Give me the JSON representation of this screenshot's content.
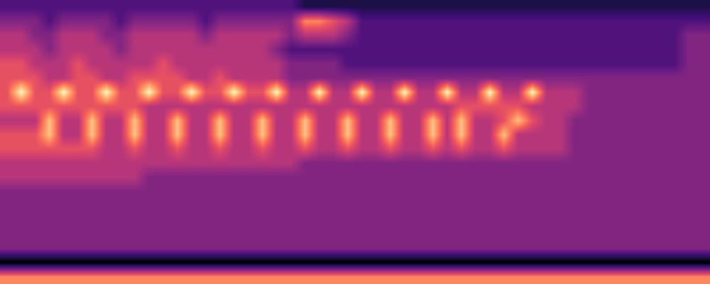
{
  "chart_data": {
    "type": "heatmap",
    "tick_labels": false,
    "cells": [
      [
        3,
        3,
        3,
        3,
        3,
        3,
        3,
        3,
        3,
        3,
        3,
        3,
        3,
        3,
        3,
        3,
        3,
        3,
        3,
        3,
        3,
        2,
        2,
        2,
        2,
        2,
        2,
        2,
        2,
        2,
        2,
        2,
        2,
        2,
        2,
        2,
        2,
        2,
        2,
        2,
        2,
        2,
        2,
        2,
        2,
        2,
        2,
        2,
        2,
        2
      ],
      [
        4,
        4,
        4,
        3,
        4,
        4,
        4,
        4,
        3,
        4,
        4,
        4,
        4,
        4,
        3,
        4,
        4,
        4,
        4,
        4,
        4,
        7,
        7,
        6,
        5,
        3,
        3,
        3,
        3,
        3,
        3,
        3,
        3,
        3,
        3,
        3,
        3,
        3,
        3,
        3,
        3,
        3,
        3,
        3,
        3,
        3,
        3,
        3,
        3,
        3
      ],
      [
        5,
        5,
        4,
        4,
        5,
        5,
        5,
        4,
        4,
        5,
        5,
        5,
        5,
        5,
        4,
        5,
        5,
        5,
        5,
        5,
        4,
        5,
        5,
        5,
        4,
        3,
        3,
        3,
        3,
        3,
        3,
        3,
        3,
        3,
        3,
        3,
        3,
        3,
        3,
        3,
        3,
        3,
        3,
        3,
        3,
        3,
        3,
        3,
        4,
        4
      ],
      [
        5,
        5,
        5,
        4,
        5,
        5,
        5,
        5,
        4,
        5,
        5,
        5,
        5,
        5,
        5,
        5,
        5,
        5,
        5,
        4,
        3,
        3,
        3,
        3,
        3,
        3,
        3,
        3,
        3,
        3,
        3,
        3,
        3,
        3,
        3,
        3,
        3,
        3,
        3,
        3,
        3,
        3,
        3,
        3,
        3,
        3,
        3,
        3,
        4,
        4
      ],
      [
        6,
        6,
        5,
        5,
        5,
        6,
        5,
        5,
        5,
        5,
        5,
        6,
        5,
        5,
        5,
        5,
        5,
        5,
        5,
        5,
        4,
        4,
        4,
        4,
        3,
        3,
        3,
        3,
        3,
        3,
        3,
        3,
        3,
        3,
        3,
        3,
        3,
        3,
        3,
        3,
        3,
        3,
        3,
        3,
        3,
        3,
        3,
        3,
        4,
        4
      ],
      [
        6,
        6,
        6,
        5,
        5,
        6,
        6,
        5,
        5,
        6,
        6,
        6,
        6,
        5,
        5,
        6,
        5,
        5,
        5,
        5,
        4,
        4,
        4,
        4,
        4,
        4,
        4,
        4,
        4,
        4,
        4,
        4,
        4,
        4,
        4,
        4,
        4,
        4,
        4,
        4,
        4,
        4,
        4,
        4,
        4,
        4,
        4,
        4,
        4,
        4
      ],
      [
        6,
        9,
        6,
        6,
        9,
        6,
        6,
        9,
        6,
        6,
        9,
        6,
        6,
        9,
        6,
        6,
        9,
        6,
        6,
        9,
        5,
        5,
        9,
        5,
        5,
        9,
        5,
        5,
        9,
        5,
        5,
        9,
        5,
        5,
        9,
        5,
        5,
        9,
        5,
        5,
        5,
        4,
        4,
        4,
        4,
        4,
        4,
        4,
        4,
        4
      ],
      [
        6,
        6,
        6,
        6,
        6,
        6,
        6,
        6,
        6,
        6,
        5,
        5,
        5,
        5,
        5,
        5,
        5,
        5,
        5,
        5,
        5,
        5,
        5,
        5,
        5,
        5,
        5,
        5,
        5,
        5,
        5,
        5,
        6,
        6,
        6,
        6,
        6,
        5,
        5,
        5,
        5,
        4,
        4,
        4,
        4,
        4,
        4,
        4,
        4,
        4
      ],
      [
        5,
        5,
        5,
        8,
        5,
        5,
        8,
        5,
        5,
        8,
        5,
        5,
        8,
        5,
        5,
        8,
        5,
        5,
        8,
        5,
        5,
        8,
        5,
        5,
        8,
        5,
        5,
        8,
        5,
        5,
        8,
        5,
        8,
        5,
        5,
        6,
        8,
        6,
        5,
        5,
        4,
        4,
        4,
        4,
        4,
        4,
        4,
        4,
        4,
        4
      ],
      [
        6,
        6,
        6,
        8,
        5,
        5,
        8,
        5,
        5,
        8,
        5,
        5,
        8,
        5,
        5,
        8,
        5,
        5,
        8,
        5,
        5,
        8,
        5,
        5,
        8,
        5,
        5,
        8,
        5,
        5,
        8,
        5,
        8,
        5,
        5,
        8,
        5,
        5,
        5,
        5,
        4,
        4,
        4,
        4,
        4,
        4,
        4,
        4,
        4,
        4
      ],
      [
        6,
        6,
        6,
        6,
        6,
        6,
        6,
        5,
        5,
        6,
        5,
        5,
        6,
        5,
        5,
        6,
        5,
        5,
        6,
        5,
        5,
        6,
        5,
        5,
        6,
        5,
        5,
        6,
        5,
        5,
        6,
        5,
        6,
        5,
        5,
        6,
        5,
        5,
        5,
        5,
        4,
        4,
        4,
        4,
        4,
        4,
        4,
        4,
        4,
        4
      ],
      [
        5,
        5,
        5,
        5,
        5,
        5,
        5,
        5,
        5,
        5,
        5,
        5,
        5,
        5,
        5,
        5,
        5,
        5,
        5,
        5,
        5,
        4,
        4,
        4,
        4,
        4,
        4,
        4,
        4,
        4,
        4,
        4,
        4,
        4,
        4,
        4,
        4,
        4,
        4,
        4,
        4,
        4,
        4,
        4,
        4,
        4,
        4,
        4,
        4,
        4
      ],
      [
        5,
        5,
        5,
        5,
        5,
        5,
        5,
        5,
        5,
        5,
        4,
        4,
        4,
        4,
        4,
        4,
        4,
        4,
        4,
        4,
        4,
        4,
        4,
        4,
        4,
        4,
        4,
        4,
        4,
        4,
        4,
        4,
        4,
        4,
        4,
        4,
        4,
        4,
        4,
        4,
        4,
        4,
        4,
        4,
        4,
        4,
        4,
        4,
        4,
        4
      ],
      [
        4,
        4,
        4,
        4,
        4,
        4,
        4,
        4,
        4,
        4,
        4,
        4,
        4,
        4,
        4,
        4,
        4,
        4,
        4,
        4,
        4,
        4,
        4,
        4,
        4,
        4,
        4,
        4,
        4,
        4,
        4,
        4,
        4,
        4,
        4,
        4,
        4,
        4,
        4,
        4,
        4,
        4,
        4,
        4,
        4,
        4,
        4,
        4,
        4,
        4
      ],
      [
        4,
        4,
        4,
        4,
        4,
        4,
        4,
        4,
        4,
        4,
        4,
        4,
        4,
        4,
        4,
        4,
        4,
        4,
        4,
        4,
        4,
        4,
        4,
        4,
        4,
        4,
        4,
        4,
        4,
        4,
        4,
        4,
        4,
        4,
        4,
        4,
        4,
        4,
        4,
        4,
        4,
        4,
        4,
        4,
        4,
        4,
        4,
        4,
        4,
        4
      ],
      [
        4,
        4,
        4,
        4,
        4,
        4,
        4,
        4,
        4,
        4,
        4,
        4,
        4,
        4,
        4,
        4,
        4,
        4,
        4,
        4,
        4,
        4,
        4,
        4,
        4,
        4,
        4,
        4,
        4,
        4,
        4,
        4,
        4,
        4,
        4,
        4,
        4,
        4,
        4,
        4,
        4,
        4,
        4,
        4,
        4,
        4,
        4,
        4,
        4,
        4
      ],
      [
        4,
        4,
        4,
        4,
        4,
        4,
        4,
        4,
        4,
        4,
        4,
        4,
        4,
        4,
        4,
        4,
        4,
        4,
        4,
        4,
        4,
        4,
        4,
        4,
        4,
        4,
        4,
        4,
        4,
        4,
        4,
        4,
        4,
        4,
        4,
        4,
        4,
        4,
        4,
        4,
        4,
        4,
        4,
        4,
        4,
        4,
        4,
        4,
        4,
        4
      ],
      [
        4,
        4,
        4,
        4,
        4,
        4,
        4,
        4,
        4,
        4,
        4,
        4,
        4,
        4,
        4,
        4,
        4,
        4,
        4,
        4,
        4,
        4,
        4,
        4,
        4,
        4,
        4,
        4,
        4,
        4,
        4,
        4,
        4,
        4,
        4,
        4,
        4,
        4,
        4,
        4,
        4,
        4,
        4,
        4,
        4,
        4,
        4,
        4,
        4,
        4
      ],
      [
        1,
        1,
        1,
        1,
        1,
        1,
        1,
        1,
        1,
        1,
        1,
        1,
        1,
        1,
        1,
        1,
        1,
        1,
        1,
        1,
        1,
        1,
        1,
        1,
        1,
        1,
        1,
        1,
        1,
        1,
        1,
        1,
        1,
        1,
        1,
        1,
        1,
        1,
        1,
        1,
        1,
        1,
        1,
        1,
        1,
        1,
        1,
        1,
        1,
        1
      ],
      [
        7,
        7,
        7,
        7,
        7,
        7,
        7,
        7,
        7,
        7,
        7,
        7,
        7,
        7,
        7,
        7,
        7,
        7,
        7,
        7,
        7,
        7,
        7,
        7,
        7,
        7,
        7,
        7,
        7,
        7,
        7,
        7,
        7,
        7,
        7,
        7,
        7,
        7,
        7,
        7,
        7,
        7,
        7,
        7,
        7,
        7,
        7,
        7,
        7,
        7
      ]
    ]
  }
}
